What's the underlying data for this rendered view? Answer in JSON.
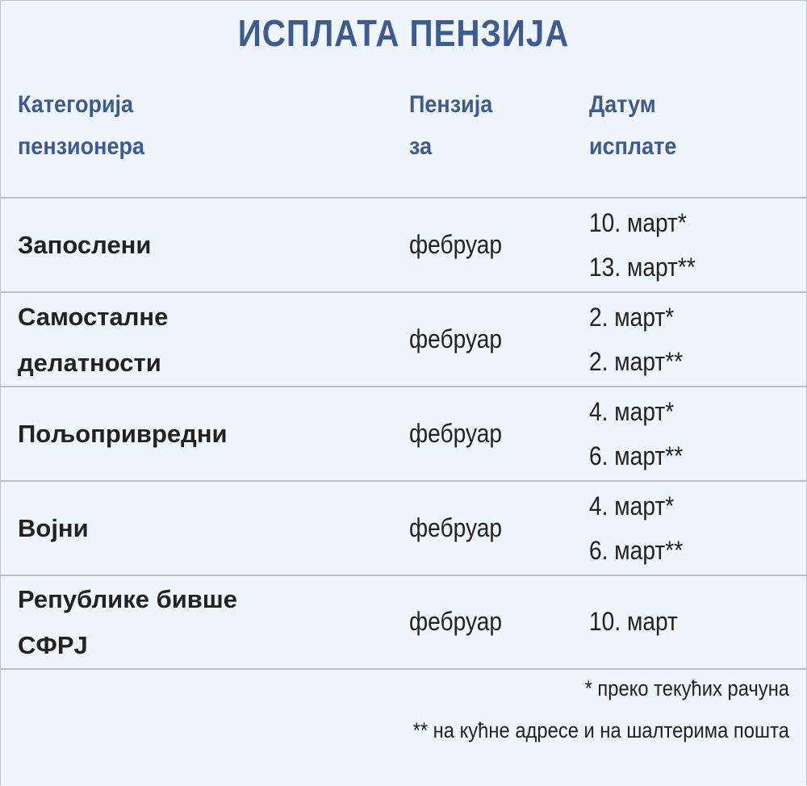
{
  "title": "ИСПЛАТА ПЕНЗИЈА",
  "headers": {
    "category": [
      "Категорија",
      "пензионера"
    ],
    "pension_for": [
      "Пензија",
      "за"
    ],
    "date": [
      "Датум",
      "исплате"
    ]
  },
  "rows": [
    {
      "category": [
        "Запослени"
      ],
      "pension_for": "фебруар",
      "dates": [
        "10. март*",
        "13. март**"
      ]
    },
    {
      "category": [
        "Самосталне",
        "делатности"
      ],
      "pension_for": "фебруар",
      "dates": [
        "2. март*",
        "2. март**"
      ]
    },
    {
      "category": [
        "Пољопривредни"
      ],
      "pension_for": "фебруар",
      "dates": [
        "4. март*",
        "6. март**"
      ]
    },
    {
      "category": [
        "Војни"
      ],
      "pension_for": "фебруар",
      "dates": [
        "4. март*",
        "6. март**"
      ]
    },
    {
      "category": [
        "Републике бивше",
        "СФРЈ"
      ],
      "pension_for": "фебруар",
      "dates": [
        "10. март"
      ]
    }
  ],
  "footnotes": [
    "* преко текућих рачуна",
    "** на кућне адресе и на шалтерима пошта"
  ]
}
